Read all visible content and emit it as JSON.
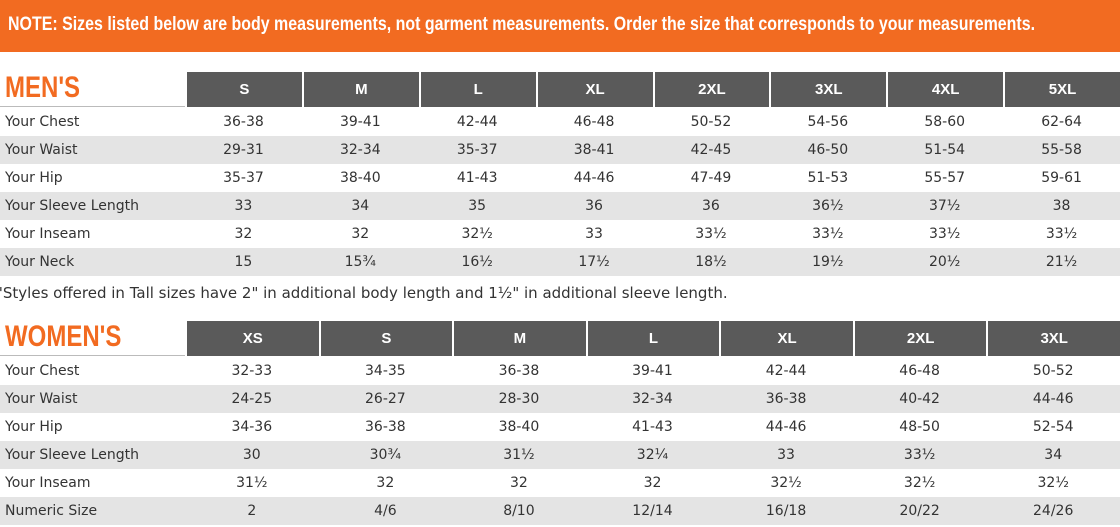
{
  "banner": {
    "text": "NOTE: Sizes listed below are body measurements, not garment measurements. Order the size that corresponds to your measurements."
  },
  "mens": {
    "title": "MEN'S",
    "sizes": [
      "S",
      "M",
      "L",
      "XL",
      "2XL",
      "3XL",
      "4XL",
      "5XL"
    ],
    "rows": [
      {
        "label": "Your Chest",
        "values": [
          "36-38",
          "39-41",
          "42-44",
          "46-48",
          "50-52",
          "54-56",
          "58-60",
          "62-64"
        ]
      },
      {
        "label": "Your Waist",
        "values": [
          "29-31",
          "32-34",
          "35-37",
          "38-41",
          "42-45",
          "46-50",
          "51-54",
          "55-58"
        ]
      },
      {
        "label": "Your Hip",
        "values": [
          "35-37",
          "38-40",
          "41-43",
          "44-46",
          "47-49",
          "51-53",
          "55-57",
          "59-61"
        ]
      },
      {
        "label": "Your Sleeve Length",
        "values": [
          "33",
          "34",
          "35",
          "36",
          "36",
          "36½",
          "37½",
          "38"
        ]
      },
      {
        "label": "Your Inseam",
        "values": [
          "32",
          "32",
          "32½",
          "33",
          "33½",
          "33½",
          "33½",
          "33½"
        ]
      },
      {
        "label": "Your Neck",
        "values": [
          "15",
          "15¾",
          "16½",
          "17½",
          "18½",
          "19½",
          "20½",
          "21½"
        ]
      }
    ]
  },
  "note": {
    "text": "\"Styles offered in Tall sizes have 2\" in additional body length and 1½\" in additional sleeve length."
  },
  "womens": {
    "title": "WOMEN'S",
    "sizes": [
      "XS",
      "S",
      "M",
      "L",
      "XL",
      "2XL",
      "3XL"
    ],
    "rows": [
      {
        "label": "Your Chest",
        "values": [
          "32-33",
          "34-35",
          "36-38",
          "39-41",
          "42-44",
          "46-48",
          "50-52"
        ]
      },
      {
        "label": "Your Waist",
        "values": [
          "24-25",
          "26-27",
          "28-30",
          "32-34",
          "36-38",
          "40-42",
          "44-46"
        ]
      },
      {
        "label": "Your Hip",
        "values": [
          "34-36",
          "36-38",
          "38-40",
          "41-43",
          "44-46",
          "48-50",
          "52-54"
        ]
      },
      {
        "label": "Your Sleeve Length",
        "values": [
          "30",
          "30¾",
          "31½",
          "32¼",
          "33",
          "33½",
          "34"
        ]
      },
      {
        "label": "Your Inseam",
        "values": [
          "31½",
          "32",
          "32",
          "32",
          "32½",
          "32½",
          "32½"
        ]
      },
      {
        "label": "Numeric Size",
        "values": [
          "2",
          "4/6",
          "8/10",
          "12/14",
          "16/18",
          "20/22",
          "24/26"
        ]
      }
    ]
  }
}
